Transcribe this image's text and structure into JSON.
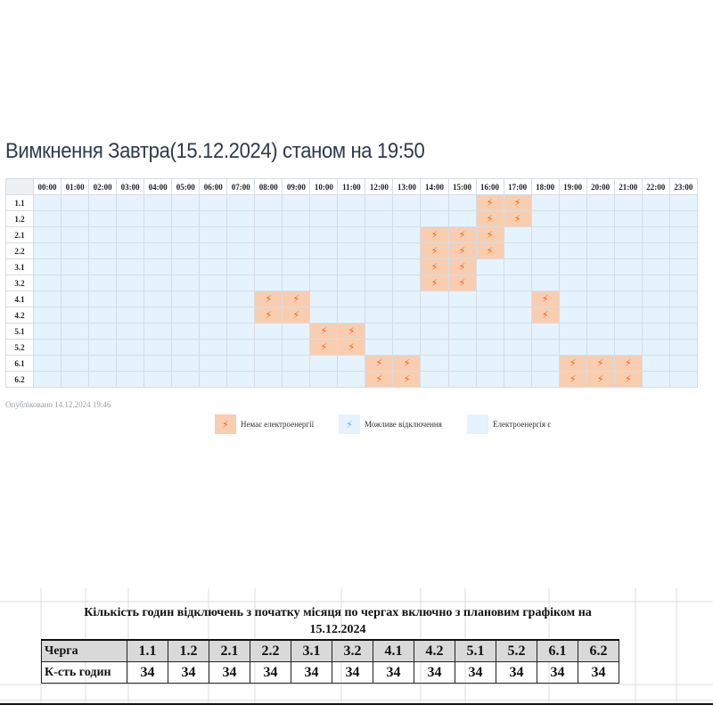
{
  "schedule": {
    "title": "Вимкнення Завтра(15.12.2024) станом на 19:50",
    "hours": [
      "00:00",
      "01:00",
      "02:00",
      "03:00",
      "04:00",
      "05:00",
      "06:00",
      "07:00",
      "08:00",
      "09:00",
      "10:00",
      "11:00",
      "12:00",
      "13:00",
      "14:00",
      "15:00",
      "16:00",
      "17:00",
      "18:00",
      "19:00",
      "20:00",
      "21:00",
      "22:00",
      "23:00"
    ],
    "queues": [
      {
        "name": "1.1",
        "off": [
          16,
          17
        ]
      },
      {
        "name": "1.2",
        "off": [
          16,
          17
        ]
      },
      {
        "name": "2.1",
        "off": [
          14,
          15,
          16
        ]
      },
      {
        "name": "2.2",
        "off": [
          14,
          15,
          16
        ]
      },
      {
        "name": "3.1",
        "off": [
          14,
          15
        ]
      },
      {
        "name": "3.2",
        "off": [
          14,
          15
        ]
      },
      {
        "name": "4.1",
        "off": [
          8,
          9,
          18
        ]
      },
      {
        "name": "4.2",
        "off": [
          8,
          9,
          18
        ]
      },
      {
        "name": "5.1",
        "off": [
          10,
          11
        ]
      },
      {
        "name": "5.2",
        "off": [
          10,
          11
        ]
      },
      {
        "name": "6.1",
        "off": [
          12,
          13,
          19,
          20,
          21
        ]
      },
      {
        "name": "6.2",
        "off": [
          12,
          13,
          19,
          20,
          21
        ]
      }
    ],
    "published": "Опубліковано 14.12.2024 19:46",
    "colors": {
      "off": "#f9cdb0",
      "on": "#e4f3fd",
      "bolt": "#e86a1c"
    }
  },
  "legend": {
    "no_power": "Немає електроенергії",
    "maybe": "Можливе відключення",
    "power": "Електроенергія є"
  },
  "summary": {
    "title_line1": "Кількість годин відключень з початку місяця по чергах включно з плановим графіком на",
    "title_line2": "15.12.2024",
    "queue_label": "Черга",
    "hours_label": "К-сть годин",
    "queues": [
      "1.1",
      "1.2",
      "2.1",
      "2.2",
      "3.1",
      "3.2",
      "4.1",
      "4.2",
      "5.1",
      "5.2",
      "6.1",
      "6.2"
    ],
    "hours": [
      "34",
      "34",
      "34",
      "34",
      "34",
      "34",
      "34",
      "34",
      "34",
      "34",
      "34",
      "34"
    ]
  }
}
